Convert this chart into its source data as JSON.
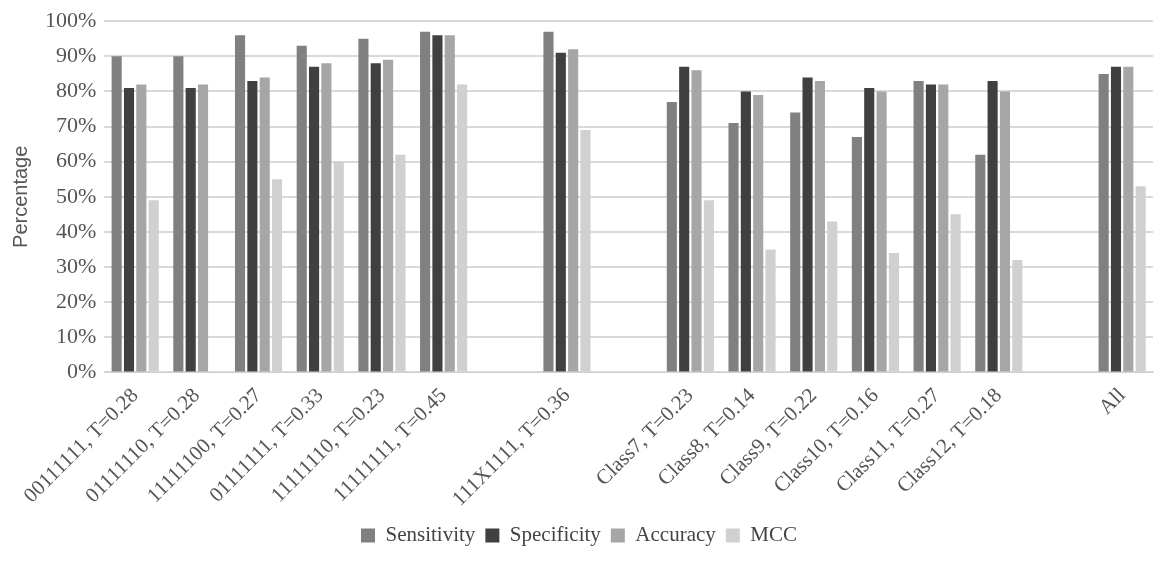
{
  "chart_data": {
    "type": "bar",
    "ylabel": "Percentage",
    "categories": [
      "00111111, T=0.28",
      "01111110, T=0.28",
      "11111100, T=0.27",
      "01111111, T=0.33",
      "11111110, T=0.23",
      "11111111, T=0.45",
      null,
      "111X1111, T=0.36",
      null,
      "Class7, T=0.23",
      "Class8, T=0.14",
      "Class9, T=0.22",
      "Class10, T=0.16",
      "Class11, T=0.27",
      "Class12, T=0.18",
      null,
      "All"
    ],
    "series": [
      {
        "name": "Sensitivity",
        "color": "#808080",
        "values": [
          90,
          90,
          96,
          93,
          95,
          97,
          null,
          97,
          null,
          77,
          71,
          74,
          67,
          83,
          62,
          null,
          85
        ]
      },
      {
        "name": "Specificity",
        "color": "#404040",
        "values": [
          81,
          81,
          83,
          87,
          88,
          96,
          null,
          91,
          null,
          87,
          80,
          84,
          81,
          82,
          83,
          null,
          87
        ]
      },
      {
        "name": "Accuracy",
        "color": "#a6a6a6",
        "values": [
          82,
          82,
          84,
          88,
          89,
          96,
          null,
          92,
          null,
          86,
          79,
          83,
          80,
          82,
          80,
          null,
          87
        ]
      },
      {
        "name": "MCC",
        "color": "#d0d0d0",
        "values": [
          49,
          null,
          55,
          60,
          62,
          82,
          null,
          69,
          null,
          49,
          35,
          43,
          34,
          45,
          32,
          null,
          53
        ]
      }
    ],
    "ylim": [
      0,
      100
    ],
    "yticks": [
      {
        "value": 0,
        "label": "0%"
      },
      {
        "value": 10,
        "label": "10%"
      },
      {
        "value": 20,
        "label": "20%"
      },
      {
        "value": 30,
        "label": "30%"
      },
      {
        "value": 40,
        "label": "40%"
      },
      {
        "value": 50,
        "label": "50%"
      },
      {
        "value": 60,
        "label": "60%"
      },
      {
        "value": 70,
        "label": "70%"
      },
      {
        "value": 80,
        "label": "80%"
      },
      {
        "value": 90,
        "label": "90%"
      },
      {
        "value": 100,
        "label": "100%"
      }
    ],
    "grid": "y",
    "legend": "bottom"
  }
}
